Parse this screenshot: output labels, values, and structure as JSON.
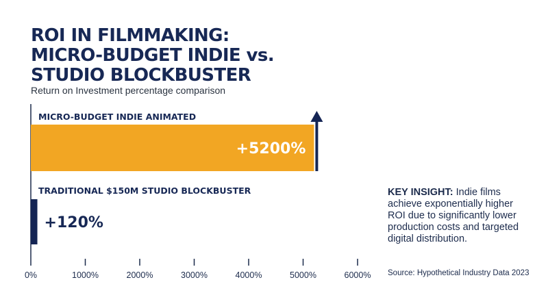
{
  "title_lines": [
    "ROI IN FILMMAKING:",
    "MICRO-BUDGET INDIE vs.",
    "STUDIO BLOCKBUSTER"
  ],
  "subtitle": "Return on Investment percentage comparison",
  "insight": {
    "keyword": "KEY INSIGHT:",
    "text": " Indie films achieve exponentially higher ROI due to significantly lower production costs and targeted digital distribution."
  },
  "source": "Source: Hypothetical Industry Data 2023",
  "colors": {
    "indie": "#f2a623",
    "studio": "#152554",
    "axis": "#1b2a4a"
  },
  "chart_data": {
    "type": "bar",
    "orientation": "horizontal",
    "categories": [
      "MICRO-BUDGET INDIE ANIMATED",
      "TRADITIONAL $150M STUDIO BLOCKBUSTER"
    ],
    "values": [
      5200,
      120
    ],
    "value_labels": [
      "+5200%",
      "+120%"
    ],
    "xlim": [
      0,
      6000
    ],
    "ticks": [
      0,
      1000,
      2000,
      3000,
      4000,
      5000,
      6000
    ],
    "tick_labels": [
      "0%",
      "1000%",
      "2000%",
      "3000%",
      "4000%",
      "5000%",
      "6000%"
    ],
    "grid": false,
    "annotation": "upward arrow at end of indie bar"
  }
}
